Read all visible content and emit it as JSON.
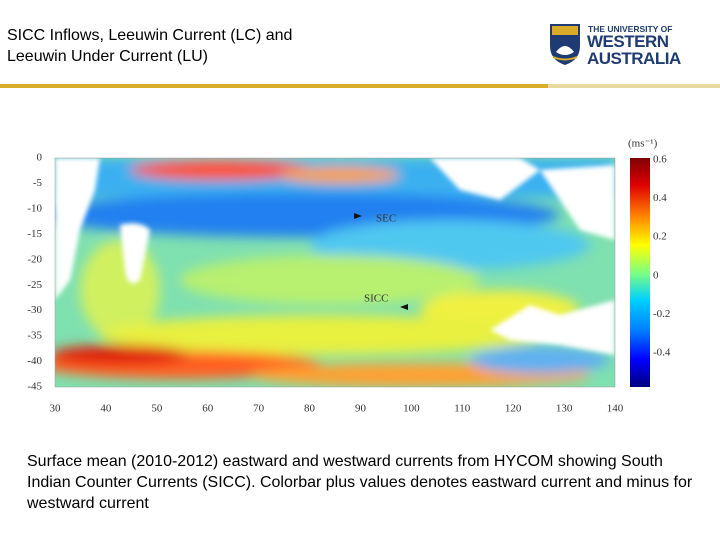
{
  "header": {
    "title": [
      "SICC Inflows, Leeuwin Current (LC) and",
      "Leeuwin Under Current (LU)"
    ]
  },
  "logo": {
    "line1": "THE UNIVERSITY OF",
    "line2": "WESTERN",
    "line3": "AUSTRALIA"
  },
  "figure": {
    "y_labels": [
      "0",
      "-5",
      "-10",
      "-15",
      "-20",
      "-25",
      "-30",
      "-35",
      "-40",
      "-45"
    ],
    "x_labels": [
      "30",
      "40",
      "50",
      "60",
      "70",
      "80",
      "90",
      "100",
      "110",
      "120",
      "130",
      "140"
    ],
    "annotations": [
      "SEC",
      "SICC"
    ],
    "colorbar_unit": "(ms⁻¹)",
    "colorbar_labels": [
      "0.6",
      "0.4",
      "0.2",
      "0",
      "-0.2",
      "-0.4"
    ]
  },
  "caption": "Surface mean (2010-2012) eastward and westward currents from HYCOM showing South Indian Counter Currents (SICC). Colorbar plus values denotes eastward current and minus for westward current"
}
